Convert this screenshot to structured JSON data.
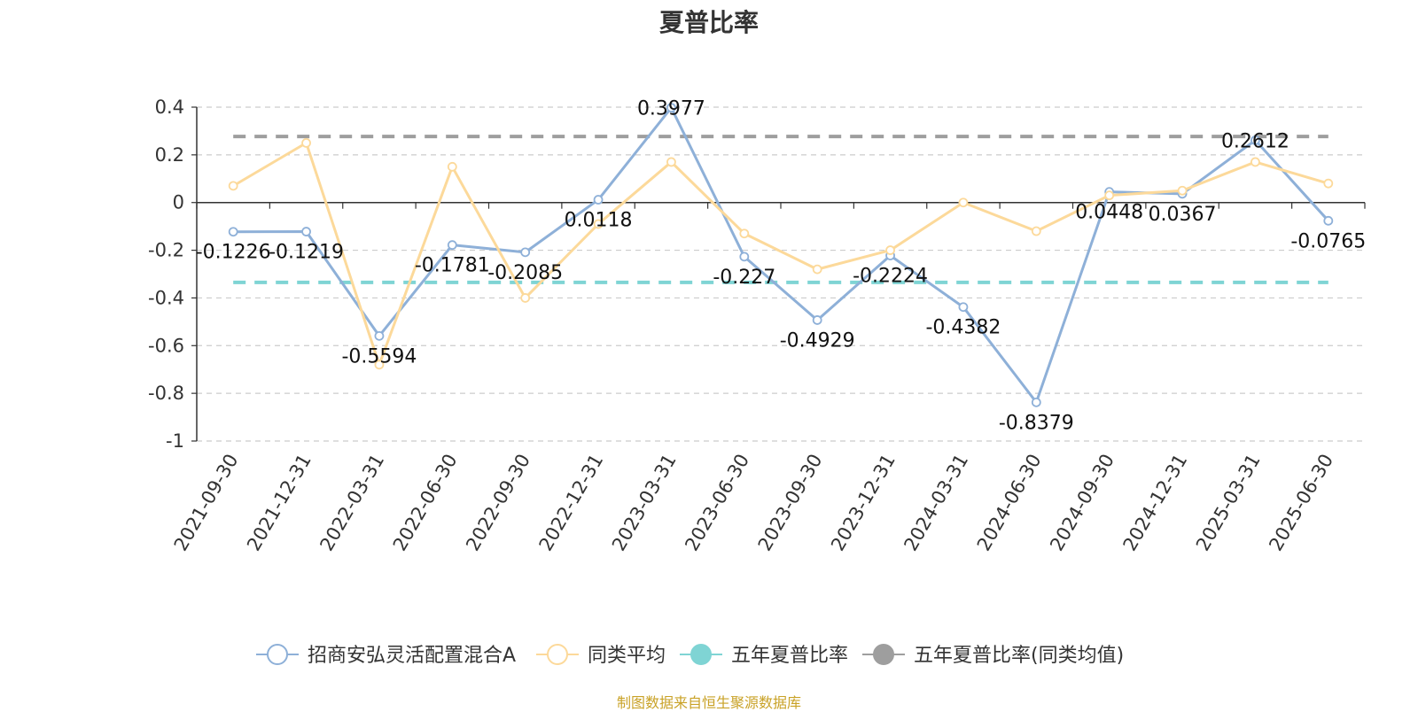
{
  "chart_data": {
    "type": "line",
    "title": "夏普比率",
    "categories": [
      "2021-09-30",
      "2021-12-31",
      "2022-03-31",
      "2022-06-30",
      "2022-09-30",
      "2022-12-31",
      "2023-03-31",
      "2023-06-30",
      "2023-09-30",
      "2023-12-31",
      "2024-03-31",
      "2024-06-30",
      "2024-09-30",
      "2024-12-31",
      "2025-03-31",
      "2025-06-30"
    ],
    "ylim": [
      -1,
      0.4
    ],
    "yticks": [
      0.4,
      0.2,
      0,
      -0.2,
      -0.4,
      -0.6,
      -0.8,
      -1
    ],
    "ytick_labels": [
      "0.4",
      "0.2",
      "0",
      "-0.2",
      "-0.4",
      "-0.6",
      "-0.8",
      "-1"
    ],
    "grid": true,
    "legend_position": "bottom",
    "series": [
      {
        "name": "招商安弘灵活配置混合A",
        "color": "#8eb0d8",
        "values": [
          -0.1226,
          -0.1219,
          -0.5594,
          -0.1781,
          -0.2085,
          0.0118,
          0.3977,
          -0.227,
          -0.4929,
          -0.2224,
          -0.4382,
          -0.8379,
          0.0448,
          0.0367,
          0.2612,
          -0.0765
        ],
        "labels": [
          "-0.1226",
          "-0.1219",
          "-0.5594",
          "-0.1781",
          "-0.2085",
          "0.0118",
          "0.3977",
          "-0.227",
          "-0.4929",
          "-0.2224",
          "-0.4382",
          "-0.8379",
          "0.0448",
          "0.0367",
          "0.2612",
          "-0.0765"
        ]
      },
      {
        "name": "同类平均",
        "color": "#fcd99a",
        "values": [
          0.07,
          0.25,
          -0.68,
          0.15,
          -0.4,
          -0.09,
          0.17,
          -0.13,
          -0.28,
          -0.2,
          0.0,
          -0.12,
          0.03,
          0.05,
          0.17,
          0.08
        ]
      },
      {
        "name": "五年夏普比率",
        "color": "#7fd4d4",
        "value": -0.335,
        "dashed": true
      },
      {
        "name": "五年夏普比率(同类均值)",
        "color": "#9e9e9e",
        "value": 0.277,
        "dashed": true
      }
    ]
  },
  "footer": {
    "source_text": "制图数据来自恒生聚源数据库"
  }
}
